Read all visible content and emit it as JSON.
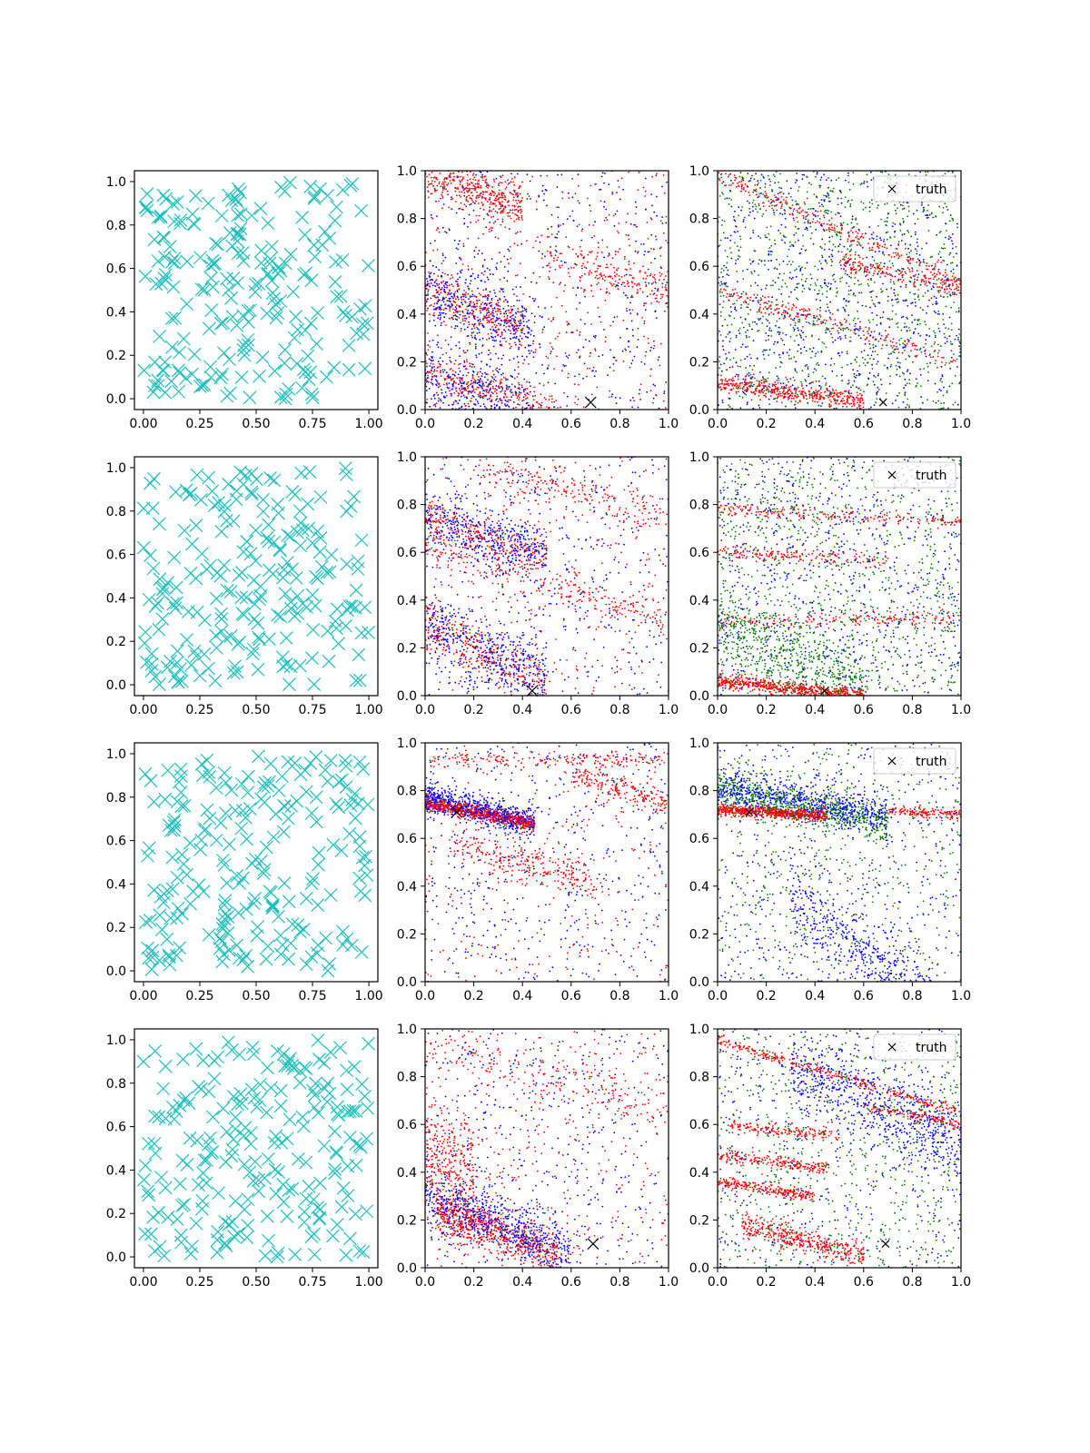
{
  "figure": {
    "description_rows": 4,
    "description_cols": 3
  },
  "colors": {
    "samples": "#1fbfbf",
    "series_red": "#ff0000",
    "series_blue": "#0000ff",
    "series_green": "#008000",
    "truth": "#000000"
  },
  "chart_data": [
    {
      "panel": "r1c1",
      "type": "scatter",
      "marker": "x",
      "series": "samples",
      "xlim": [
        -0.04,
        1.04
      ],
      "ylim": [
        -0.05,
        1.05
      ],
      "xticks": [
        "0.00",
        "0.25",
        "0.50",
        "0.75",
        "1.00"
      ],
      "yticks": [
        "0.0",
        "0.2",
        "0.4",
        "0.6",
        "0.8",
        "1.0"
      ],
      "n_points": 220,
      "seed": 11
    },
    {
      "panel": "r1c2",
      "type": "scatter",
      "marker": "dot",
      "xlim": [
        0,
        1
      ],
      "ylim": [
        0,
        1
      ],
      "xticks": [
        "0.0",
        "0.2",
        "0.4",
        "0.6",
        "0.8",
        "1.0"
      ],
      "yticks": [
        "0.0",
        "0.2",
        "0.4",
        "0.6",
        "0.8",
        "1.0"
      ],
      "truth": [
        0.68,
        0.03
      ],
      "seed": 21,
      "bands": [
        {
          "color": "red",
          "n": 420,
          "x": [
            0,
            0.4
          ],
          "y0": 1.0,
          "slope": -0.35,
          "spread": 0.05
        },
        {
          "color": "blue",
          "n": 360,
          "x": [
            0,
            0.45
          ],
          "y0": 0.5,
          "slope": -0.4,
          "spread": 0.07
        },
        {
          "color": "red",
          "n": 300,
          "x": [
            0,
            0.4
          ],
          "y0": 0.5,
          "slope": -0.4,
          "spread": 0.05
        },
        {
          "color": "blue",
          "n": 360,
          "x": [
            0,
            0.45
          ],
          "y0": 0.15,
          "slope": -0.35,
          "spread": 0.07
        },
        {
          "color": "red",
          "n": 320,
          "x": [
            0,
            0.55
          ],
          "y0": 0.15,
          "slope": -0.3,
          "spread": 0.05
        },
        {
          "color": "red",
          "n": 200,
          "x": [
            0.5,
            1
          ],
          "y0": 0.8,
          "slope": -0.3,
          "spread": 0.05
        },
        {
          "color": "blue",
          "n": 500,
          "x": [
            0,
            1
          ],
          "y0": 0.5,
          "slope": 0,
          "spread": 0.5
        },
        {
          "color": "red",
          "n": 350,
          "x": [
            0,
            1
          ],
          "y0": 0.5,
          "slope": 0,
          "spread": 0.5
        }
      ]
    },
    {
      "panel": "r1c3",
      "type": "scatter",
      "marker": "dot",
      "xlim": [
        0,
        1
      ],
      "ylim": [
        0,
        1
      ],
      "xticks": [
        "0.0",
        "0.2",
        "0.4",
        "0.6",
        "0.8",
        "1.0"
      ],
      "yticks": [
        "0.0",
        "0.2",
        "0.4",
        "0.6",
        "0.8",
        "1.0"
      ],
      "truth": [
        0.68,
        0.03
      ],
      "legend": "truth",
      "seed": 31,
      "bands": [
        {
          "color": "red",
          "n": 420,
          "x": [
            0,
            0.6
          ],
          "y0": 0.11,
          "slope": -0.12,
          "spread": 0.02
        },
        {
          "color": "red",
          "n": 260,
          "x": [
            0,
            1
          ],
          "y0": 0.98,
          "slope": -0.45,
          "spread": 0.02
        },
        {
          "color": "red",
          "n": 220,
          "x": [
            0,
            1
          ],
          "y0": 0.5,
          "slope": -0.3,
          "spread": 0.02
        },
        {
          "color": "red",
          "n": 180,
          "x": [
            0.5,
            1
          ],
          "y0": 0.75,
          "slope": -0.25,
          "spread": 0.02
        },
        {
          "color": "blue",
          "n": 900,
          "x": [
            0,
            1
          ],
          "y0": 0.5,
          "slope": 0,
          "spread": 0.5
        },
        {
          "color": "green",
          "n": 1000,
          "x": [
            0,
            1
          ],
          "y0": 0.5,
          "slope": 0,
          "spread": 0.5
        }
      ]
    },
    {
      "panel": "r2c1",
      "type": "scatter",
      "marker": "x",
      "series": "samples",
      "xlim": [
        -0.04,
        1.04
      ],
      "ylim": [
        -0.05,
        1.05
      ],
      "xticks": [
        "0.00",
        "0.25",
        "0.50",
        "0.75",
        "1.00"
      ],
      "yticks": [
        "0.0",
        "0.2",
        "0.4",
        "0.6",
        "0.8",
        "1.0"
      ],
      "n_points": 220,
      "seed": 12
    },
    {
      "panel": "r2c2",
      "type": "scatter",
      "marker": "dot",
      "xlim": [
        0,
        1
      ],
      "ylim": [
        0,
        1
      ],
      "xticks": [
        "0.0",
        "0.2",
        "0.4",
        "0.6",
        "0.8",
        "1.0"
      ],
      "yticks": [
        "0.0",
        "0.2",
        "0.4",
        "0.6",
        "0.8",
        "1.0"
      ],
      "truth": [
        0.44,
        0.02
      ],
      "seed": 22,
      "bands": [
        {
          "color": "blue",
          "n": 420,
          "x": [
            0,
            0.5
          ],
          "y0": 0.74,
          "slope": -0.3,
          "spread": 0.06
        },
        {
          "color": "red",
          "n": 260,
          "x": [
            0,
            0.5
          ],
          "y0": 0.74,
          "slope": -0.3,
          "spread": 0.04
        },
        {
          "color": "blue",
          "n": 420,
          "x": [
            0,
            0.5
          ],
          "y0": 0.3,
          "slope": -0.5,
          "spread": 0.07
        },
        {
          "color": "red",
          "n": 300,
          "x": [
            0,
            0.5
          ],
          "y0": 0.3,
          "slope": -0.5,
          "spread": 0.05
        },
        {
          "color": "red",
          "n": 240,
          "x": [
            0,
            1
          ],
          "y0": 0.62,
          "slope": -0.3,
          "spread": 0.04
        },
        {
          "color": "red",
          "n": 200,
          "x": [
            0.2,
            1
          ],
          "y0": 1.0,
          "slope": -0.25,
          "spread": 0.04
        },
        {
          "color": "blue",
          "n": 500,
          "x": [
            0,
            1
          ],
          "y0": 0.5,
          "slope": 0,
          "spread": 0.5
        },
        {
          "color": "red",
          "n": 320,
          "x": [
            0,
            1
          ],
          "y0": 0.5,
          "slope": 0,
          "spread": 0.5
        }
      ]
    },
    {
      "panel": "r2c3",
      "type": "scatter",
      "marker": "dot",
      "xlim": [
        0,
        1
      ],
      "ylim": [
        0,
        1
      ],
      "xticks": [
        "0.0",
        "0.2",
        "0.4",
        "0.6",
        "0.8",
        "1.0"
      ],
      "yticks": [
        "0.0",
        "0.2",
        "0.4",
        "0.6",
        "0.8",
        "1.0"
      ],
      "truth": [
        0.44,
        0.02
      ],
      "legend": "truth",
      "seed": 32,
      "bands": [
        {
          "color": "red",
          "n": 600,
          "x": [
            0,
            0.6
          ],
          "y0": 0.06,
          "slope": -0.1,
          "spread": 0.015
        },
        {
          "color": "red",
          "n": 200,
          "x": [
            0,
            1
          ],
          "y0": 0.78,
          "slope": -0.05,
          "spread": 0.015
        },
        {
          "color": "red",
          "n": 160,
          "x": [
            0,
            0.7
          ],
          "y0": 0.6,
          "slope": -0.05,
          "spread": 0.015
        },
        {
          "color": "red",
          "n": 180,
          "x": [
            0,
            1
          ],
          "y0": 0.31,
          "slope": 0.02,
          "spread": 0.015
        },
        {
          "color": "green",
          "n": 500,
          "x": [
            0,
            0.6
          ],
          "y0": 0.3,
          "slope": -0.45,
          "spread": 0.08
        },
        {
          "color": "blue",
          "n": 800,
          "x": [
            0,
            1
          ],
          "y0": 0.5,
          "slope": 0,
          "spread": 0.5
        },
        {
          "color": "green",
          "n": 900,
          "x": [
            0,
            1
          ],
          "y0": 0.5,
          "slope": 0,
          "spread": 0.5
        }
      ]
    },
    {
      "panel": "r3c1",
      "type": "scatter",
      "marker": "x",
      "series": "samples",
      "xlim": [
        -0.04,
        1.04
      ],
      "ylim": [
        -0.05,
        1.05
      ],
      "xticks": [
        "0.00",
        "0.25",
        "0.50",
        "0.75",
        "1.00"
      ],
      "yticks": [
        "0.0",
        "0.2",
        "0.4",
        "0.6",
        "0.8",
        "1.0"
      ],
      "n_points": 220,
      "seed": 13
    },
    {
      "panel": "r3c2",
      "type": "scatter",
      "marker": "dot",
      "xlim": [
        0,
        1
      ],
      "ylim": [
        0,
        1
      ],
      "xticks": [
        "0.0",
        "0.2",
        "0.4",
        "0.6",
        "0.8",
        "1.0"
      ],
      "yticks": [
        "0.0",
        "0.2",
        "0.4",
        "0.6",
        "0.8",
        "1.0"
      ],
      "truth": [
        0.13,
        0.71
      ],
      "seed": 23,
      "bands": [
        {
          "color": "blue",
          "n": 700,
          "x": [
            0,
            0.45
          ],
          "y0": 0.77,
          "slope": -0.25,
          "spread": 0.03
        },
        {
          "color": "red",
          "n": 700,
          "x": [
            0,
            0.45
          ],
          "y0": 0.75,
          "slope": -0.2,
          "spread": 0.015
        },
        {
          "color": "red",
          "n": 260,
          "x": [
            0.1,
            0.7
          ],
          "y0": 0.62,
          "slope": -0.3,
          "spread": 0.04
        },
        {
          "color": "red",
          "n": 180,
          "x": [
            0,
            1
          ],
          "y0": 0.93,
          "slope": 0,
          "spread": 0.015
        },
        {
          "color": "red",
          "n": 200,
          "x": [
            0.6,
            1
          ],
          "y0": 1.05,
          "slope": -0.3,
          "spread": 0.03
        },
        {
          "color": "blue",
          "n": 500,
          "x": [
            0,
            1
          ],
          "y0": 0.5,
          "slope": 0,
          "spread": 0.5
        },
        {
          "color": "red",
          "n": 260,
          "x": [
            0,
            1
          ],
          "y0": 0.5,
          "slope": 0,
          "spread": 0.5
        }
      ]
    },
    {
      "panel": "r3c3",
      "type": "scatter",
      "marker": "dot",
      "xlim": [
        0,
        1
      ],
      "ylim": [
        0,
        1
      ],
      "xticks": [
        "0.0",
        "0.2",
        "0.4",
        "0.6",
        "0.8",
        "1.0"
      ],
      "yticks": [
        "0.0",
        "0.2",
        "0.4",
        "0.6",
        "0.8",
        "1.0"
      ],
      "truth": [
        0.13,
        0.71
      ],
      "legend": "truth",
      "seed": 33,
      "bands": [
        {
          "color": "blue",
          "n": 700,
          "x": [
            0,
            0.7
          ],
          "y0": 0.82,
          "slope": -0.2,
          "spread": 0.04
        },
        {
          "color": "green",
          "n": 600,
          "x": [
            0,
            0.7
          ],
          "y0": 0.8,
          "slope": -0.2,
          "spread": 0.04
        },
        {
          "color": "red",
          "n": 650,
          "x": [
            0,
            0.45
          ],
          "y0": 0.72,
          "slope": -0.05,
          "spread": 0.012
        },
        {
          "color": "red",
          "n": 140,
          "x": [
            0.7,
            1
          ],
          "y0": 0.75,
          "slope": -0.05,
          "spread": 0.01
        },
        {
          "color": "blue",
          "n": 500,
          "x": [
            0.3,
            0.9
          ],
          "y0": 0.6,
          "slope": -0.8,
          "spread": 0.08
        },
        {
          "color": "blue",
          "n": 500,
          "x": [
            0,
            1
          ],
          "y0": 0.5,
          "slope": 0,
          "spread": 0.5
        },
        {
          "color": "green",
          "n": 500,
          "x": [
            0,
            1
          ],
          "y0": 0.5,
          "slope": 0,
          "spread": 0.5
        }
      ]
    },
    {
      "panel": "r4c1",
      "type": "scatter",
      "marker": "x",
      "series": "samples",
      "xlim": [
        -0.04,
        1.04
      ],
      "ylim": [
        -0.05,
        1.05
      ],
      "xticks": [
        "0.00",
        "0.25",
        "0.50",
        "0.75",
        "1.00"
      ],
      "yticks": [
        "0.0",
        "0.2",
        "0.4",
        "0.6",
        "0.8",
        "1.0"
      ],
      "n_points": 220,
      "seed": 14
    },
    {
      "panel": "r4c2",
      "type": "scatter",
      "marker": "dot",
      "xlim": [
        0,
        1
      ],
      "ylim": [
        0,
        1
      ],
      "xticks": [
        "0.0",
        "0.2",
        "0.4",
        "0.6",
        "0.8",
        "1.0"
      ],
      "yticks": [
        "0.0",
        "0.2",
        "0.4",
        "0.6",
        "0.8",
        "1.0"
      ],
      "truth": [
        0.69,
        0.1
      ],
      "seed": 24,
      "bands": [
        {
          "color": "blue",
          "n": 700,
          "x": [
            0,
            0.6
          ],
          "y0": 0.3,
          "slope": -0.4,
          "spread": 0.06
        },
        {
          "color": "red",
          "n": 650,
          "x": [
            0.05,
            0.55
          ],
          "y0": 0.25,
          "slope": -0.35,
          "spread": 0.05
        },
        {
          "color": "red",
          "n": 300,
          "x": [
            0,
            0.2
          ],
          "y0": 0.5,
          "slope": -0.6,
          "spread": 0.12
        },
        {
          "color": "red",
          "n": 200,
          "x": [
            0,
            1
          ],
          "y0": 0.95,
          "slope": -0.3,
          "spread": 0.05
        },
        {
          "color": "blue",
          "n": 450,
          "x": [
            0,
            1
          ],
          "y0": 0.5,
          "slope": 0,
          "spread": 0.5
        },
        {
          "color": "red",
          "n": 350,
          "x": [
            0,
            1
          ],
          "y0": 0.5,
          "slope": 0,
          "spread": 0.5
        }
      ]
    },
    {
      "panel": "r4c3",
      "type": "scatter",
      "marker": "dot",
      "xlim": [
        0,
        1
      ],
      "ylim": [
        0,
        1
      ],
      "xticks": [
        "0.0",
        "0.2",
        "0.4",
        "0.6",
        "0.8",
        "1.0"
      ],
      "yticks": [
        "0.0",
        "0.2",
        "0.4",
        "0.6",
        "0.8",
        "1.0"
      ],
      "truth": [
        0.69,
        0.1
      ],
      "legend": "truth",
      "seed": 34,
      "bands": [
        {
          "color": "red",
          "n": 320,
          "x": [
            0,
            1
          ],
          "y0": 0.95,
          "slope": -0.3,
          "spread": 0.012
        },
        {
          "color": "red",
          "n": 220,
          "x": [
            0,
            0.4
          ],
          "y0": 0.36,
          "slope": -0.15,
          "spread": 0.012
        },
        {
          "color": "red",
          "n": 200,
          "x": [
            0,
            0.45
          ],
          "y0": 0.47,
          "slope": -0.12,
          "spread": 0.012
        },
        {
          "color": "red",
          "n": 160,
          "x": [
            0.05,
            0.5
          ],
          "y0": 0.6,
          "slope": -0.1,
          "spread": 0.012
        },
        {
          "color": "red",
          "n": 400,
          "x": [
            0.1,
            0.6
          ],
          "y0": 0.2,
          "slope": -0.25,
          "spread": 0.03
        },
        {
          "color": "red",
          "n": 140,
          "x": [
            0.6,
            1
          ],
          "y0": 0.8,
          "slope": -0.2,
          "spread": 0.012
        },
        {
          "color": "blue",
          "n": 600,
          "x": [
            0.3,
            1
          ],
          "y0": 1.0,
          "slope": -0.5,
          "spread": 0.08
        },
        {
          "color": "blue",
          "n": 500,
          "x": [
            0,
            1
          ],
          "y0": 0.5,
          "slope": 0,
          "spread": 0.5
        },
        {
          "color": "green",
          "n": 700,
          "x": [
            0,
            1
          ],
          "y0": 0.5,
          "slope": 0,
          "spread": 0.5
        }
      ]
    }
  ]
}
